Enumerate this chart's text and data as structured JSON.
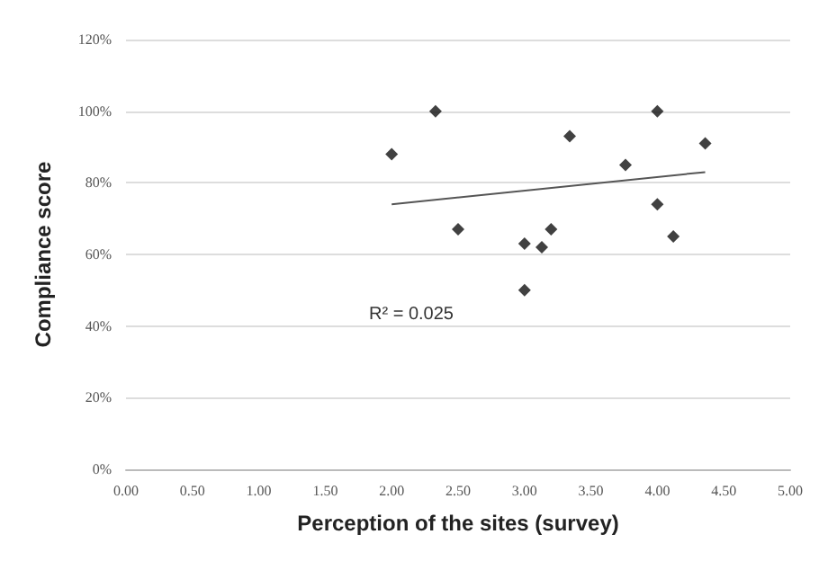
{
  "chart_data": {
    "type": "scatter",
    "xlabel": "Perception of the sites (survey)",
    "ylabel": "Compliance score",
    "series": [
      {
        "color": "#111111",
        "marker": "diamond",
        "x": [
          2.0,
          2.33,
          2.5,
          3.0,
          3.0,
          3.13,
          3.2,
          3.34,
          3.76,
          4.0,
          4.0,
          4.12,
          4.36
        ],
        "values": [
          88,
          100,
          67,
          63,
          50,
          62,
          67,
          93,
          85,
          100,
          74,
          65,
          91
        ]
      },
      {
        "type": "line",
        "marker": "none",
        "color": "#555555",
        "x": [
          2.0,
          4.36
        ],
        "values": [
          74,
          83
        ]
      }
    ],
    "annotations": [
      "R² = 0.025"
    ],
    "xlim": [
      0,
      5
    ],
    "xticks": [
      {
        "value": 0,
        "label": "0.00"
      },
      {
        "value": 0.5,
        "label": "0.50"
      },
      {
        "value": 1,
        "label": "1.00"
      },
      {
        "value": 1.5,
        "label": "1.50"
      },
      {
        "value": 2,
        "label": "2.00"
      },
      {
        "value": 2.5,
        "label": "2.50"
      },
      {
        "value": 3,
        "label": "3.00"
      },
      {
        "value": 3.5,
        "label": "3.50"
      },
      {
        "value": 4,
        "label": "4.00"
      },
      {
        "value": 4.5,
        "label": "4.50"
      },
      {
        "value": 5,
        "label": "5.00"
      }
    ],
    "ylim": [
      0,
      120
    ],
    "yticks": [
      {
        "value": 0,
        "label": "0%"
      },
      {
        "value": 20,
        "label": "20%"
      },
      {
        "value": 40,
        "label": "40%"
      },
      {
        "value": 60,
        "label": "60%"
      },
      {
        "value": 80,
        "label": "80%"
      },
      {
        "value": 100,
        "label": "100%"
      },
      {
        "value": 120,
        "label": "120%"
      }
    ],
    "grid": "y"
  }
}
